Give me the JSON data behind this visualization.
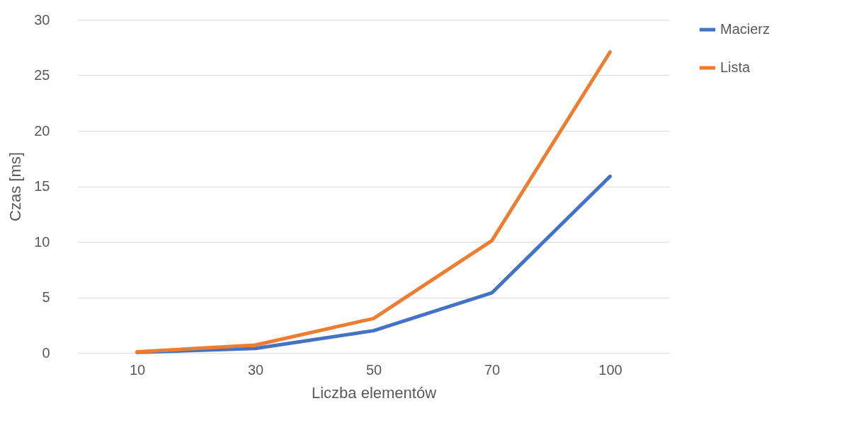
{
  "chart_data": {
    "type": "line",
    "xlabel": "Liczba elementów",
    "ylabel": "Czas [ms]",
    "categories": [
      "10",
      "30",
      "50",
      "70",
      "100"
    ],
    "series": [
      {
        "name": "Macierz",
        "color": "#4472c4",
        "values": [
          0.05,
          0.4,
          2.0,
          5.4,
          15.9
        ]
      },
      {
        "name": "Lista",
        "color": "#ed7d31",
        "values": [
          0.1,
          0.7,
          3.1,
          10.1,
          27.1
        ]
      }
    ],
    "ylim": [
      0,
      30
    ],
    "yticks": [
      0,
      5,
      10,
      15,
      20,
      25,
      30
    ],
    "grid": "y",
    "legend": "right",
    "line_style": "solid"
  }
}
